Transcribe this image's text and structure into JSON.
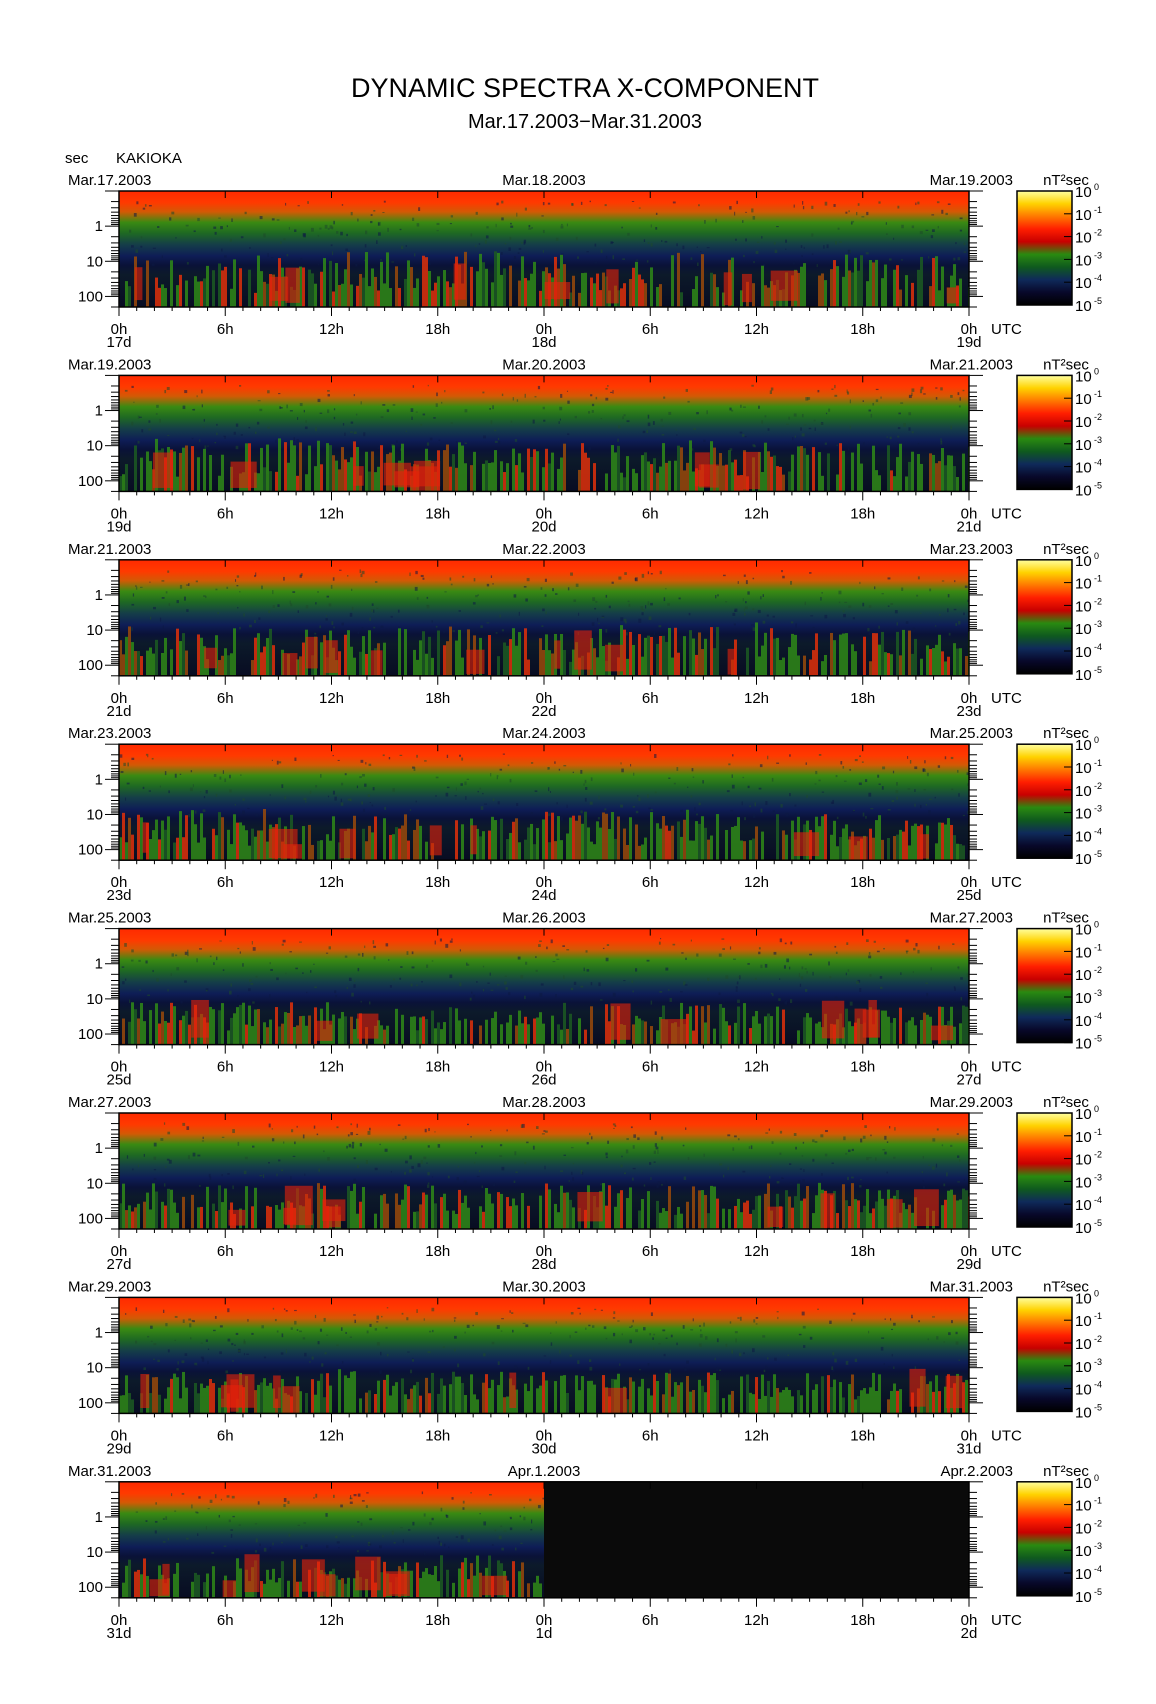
{
  "chart_data": {
    "type": "heatmap",
    "title": "DYNAMIC SPECTRA X-COMPONENT",
    "subtitle": "Mar.17.2003−Mar.31.2003",
    "station": "KAKIOKA",
    "ylabel": "sec",
    "xlabel": "UTC",
    "colorbar_label": "nT²sec",
    "colorbar": {
      "base": "10",
      "exponents": [
        "0",
        "-1",
        "-2",
        "-3",
        "-4",
        "-5"
      ],
      "colors": [
        "#ffffa0",
        "#ffd200",
        "#ff7800",
        "#ff1e00",
        "#c80000",
        "#2a8a10",
        "#0f5a1e",
        "#0f2a5a",
        "#08082a",
        "#000000"
      ]
    },
    "y_ticks": [
      "1",
      "10",
      "100"
    ],
    "y_range_sec": [
      0.1,
      200
    ],
    "x_ticks": [
      "0h",
      "6h",
      "12h",
      "18h",
      "0h",
      "6h",
      "12h",
      "18h",
      "0h"
    ],
    "x_range_hours": [
      0,
      48
    ],
    "panels": [
      {
        "date_left": "Mar.17.2003",
        "date_mid": "Mar.18.2003",
        "date_right": "Mar.19.2003",
        "day_left": "17d",
        "day_mid": "18d",
        "day_right": "19d",
        "activity": [
          0.72,
          0.8,
          0.78,
          0.75
        ],
        "data_until_hour": 48
      },
      {
        "date_left": "Mar.19.2003",
        "date_mid": "Mar.20.2003",
        "date_right": "Mar.21.2003",
        "day_left": "19d",
        "day_mid": "20d",
        "day_right": "21d",
        "activity": [
          0.75,
          0.7,
          0.72,
          0.68
        ],
        "data_until_hour": 48
      },
      {
        "date_left": "Mar.21.2003",
        "date_mid": "Mar.22.2003",
        "date_right": "Mar.23.2003",
        "day_left": "21d",
        "day_mid": "22d",
        "day_right": "23d",
        "activity": [
          0.7,
          0.68,
          0.78,
          0.65
        ],
        "data_until_hour": 48
      },
      {
        "date_left": "Mar.23.2003",
        "date_mid": "Mar.24.2003",
        "date_right": "Mar.25.2003",
        "day_left": "23d",
        "day_mid": "24d",
        "day_right": "25d",
        "activity": [
          0.72,
          0.62,
          0.7,
          0.62
        ],
        "data_until_hour": 48
      },
      {
        "date_left": "Mar.25.2003",
        "date_mid": "Mar.26.2003",
        "date_right": "Mar.27.2003",
        "day_left": "25d",
        "day_mid": "26d",
        "day_right": "27d",
        "activity": [
          0.55,
          0.45,
          0.55,
          0.5
        ],
        "data_until_hour": 48
      },
      {
        "date_left": "Mar.27.2003",
        "date_mid": "Mar.28.2003",
        "date_right": "Mar.29.2003",
        "day_left": "27d",
        "day_mid": "28d",
        "day_right": "29d",
        "activity": [
          0.62,
          0.65,
          0.62,
          0.62
        ],
        "data_until_hour": 48
      },
      {
        "date_left": "Mar.29.2003",
        "date_mid": "Mar.30.2003",
        "date_right": "Mar.31.2003",
        "day_left": "29d",
        "day_mid": "30d",
        "day_right": "31d",
        "activity": [
          0.55,
          0.58,
          0.52,
          0.52
        ],
        "data_until_hour": 48
      },
      {
        "date_left": "Mar.31.2003",
        "date_mid": "Apr.1.2003",
        "date_right": "Apr.2.2003",
        "day_left": "31d",
        "day_mid": "1d",
        "day_right": "2d",
        "activity": [
          0.5,
          0.55,
          0.0,
          0.0
        ],
        "data_until_hour": 24
      }
    ]
  }
}
